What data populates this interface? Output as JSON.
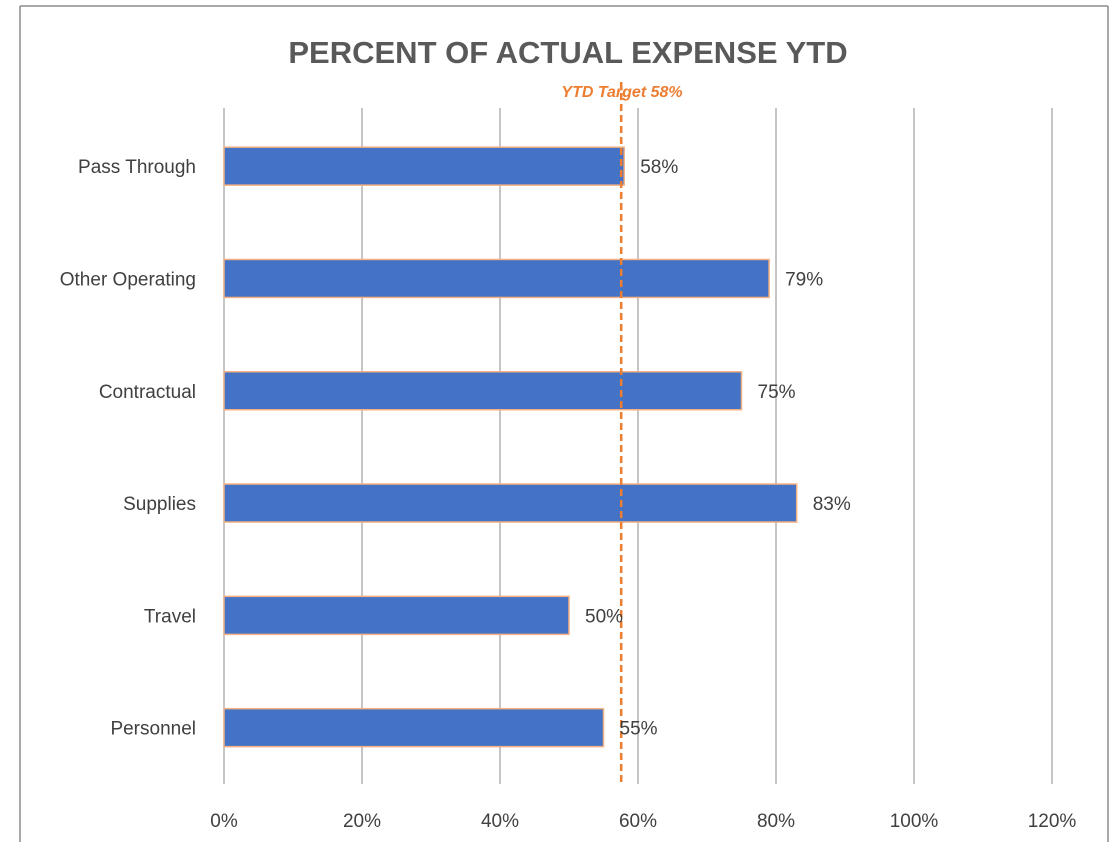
{
  "chart_data": {
    "type": "bar",
    "orientation": "horizontal",
    "title": "PERCENT OF ACTUAL EXPENSE YTD",
    "categories": [
      "Pass Through",
      "Other Operating",
      "Contractual",
      "Supplies",
      "Travel",
      "Personnel"
    ],
    "values": [
      58,
      79,
      75,
      83,
      50,
      55
    ],
    "data_labels": [
      "58%",
      "79%",
      "75%",
      "83%",
      "50%",
      "55%"
    ],
    "x_ticks": [
      "0%",
      "20%",
      "40%",
      "60%",
      "80%",
      "100%",
      "120%"
    ],
    "xlim": [
      0,
      120
    ],
    "grid": "vertical",
    "target": {
      "label": "YTD Target 58%",
      "value": 58,
      "color": "#ed7d31"
    },
    "colors": {
      "bar_fill": "#4472c4",
      "bar_outline": "#f4b183",
      "target_line": "#ed7d31"
    }
  }
}
